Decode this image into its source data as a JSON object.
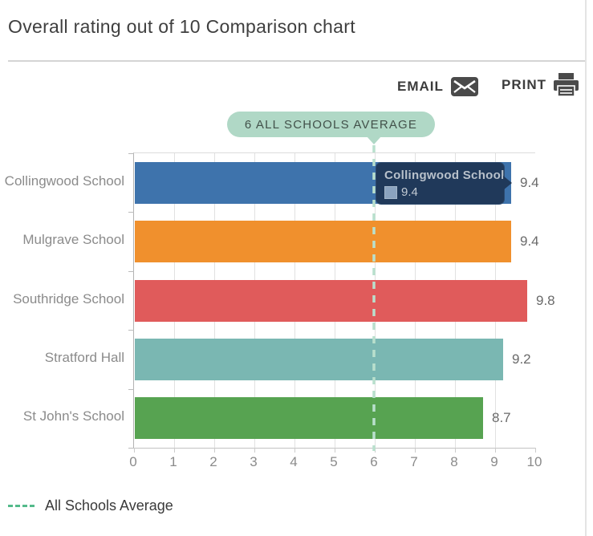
{
  "page": {
    "title": "Overall rating out of 10 Comparison chart"
  },
  "toolbar": {
    "email_label": "EMAIL",
    "print_label": "PRINT",
    "icon_color": "#4a4a4a"
  },
  "average_callout": {
    "label": "6 ALL SCHOOLS AVERAGE",
    "value": 6
  },
  "tooltip": {
    "title": "Collingwood School",
    "value": "9.4",
    "swatch_color": "#8ba3bf",
    "background": "#20395a"
  },
  "legend": {
    "label": "All Schools Average"
  },
  "chart_data": {
    "type": "bar",
    "orientation": "horizontal",
    "title": "Overall rating out of 10 Comparison chart",
    "categories": [
      "Collingwood School",
      "Mulgrave School",
      "Southridge School",
      "Stratford Hall",
      "St John's School"
    ],
    "values": [
      9.4,
      9.4,
      9.8,
      9.2,
      8.7
    ],
    "bar_colors": [
      "#3e73ac",
      "#f0902d",
      "#e05b5b",
      "#7ab7b2",
      "#57a351"
    ],
    "xlim": [
      0,
      10
    ],
    "x_ticks": [
      0,
      1,
      2,
      3,
      4,
      5,
      6,
      7,
      8,
      9,
      10
    ],
    "grid": true,
    "average_line": {
      "value": 6,
      "label": "All Schools Average",
      "color": "#b9e0cd"
    },
    "legend_position": "bottom-left",
    "xlabel": "",
    "ylabel": ""
  }
}
